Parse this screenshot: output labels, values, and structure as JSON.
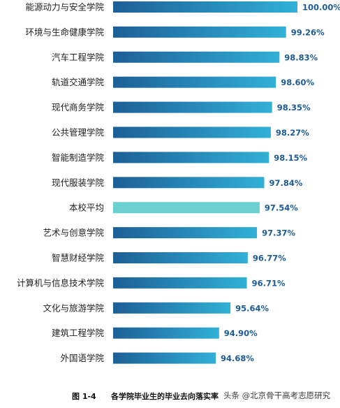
{
  "chart_data": {
    "type": "bar",
    "orientation": "horizontal",
    "categories": [
      "能源动力与安全学院",
      "环境与生命健康学院",
      "汽车工程学院",
      "轨道交通学院",
      "现代商务学院",
      "公共管理学院",
      "智能制造学院",
      "现代服装学院",
      "本校平均",
      "艺术与创意学院",
      "智慧财经学院",
      "计算机与信息技术学院",
      "文化与旅游学院",
      "建筑工程学院",
      "外国语学院"
    ],
    "values": [
      100.0,
      99.26,
      98.83,
      98.6,
      98.35,
      98.27,
      98.15,
      97.84,
      97.54,
      97.37,
      96.77,
      96.71,
      95.64,
      94.9,
      94.68
    ],
    "value_labels": [
      "100.00%",
      "99.26%",
      "98.83%",
      "98.60%",
      "98.35%",
      "98.27%",
      "98.15%",
      "97.84%",
      "97.54%",
      "97.37%",
      "96.77%",
      "96.71%",
      "95.64%",
      "94.90%",
      "94.68%"
    ],
    "highlight_category": "本校平均",
    "colors": {
      "bar_start": "#1d5f97",
      "bar_end": "#31b0d6",
      "highlight": "#6ad0d0",
      "value_text": "#1c5b94"
    },
    "axis": {
      "x_visible": false,
      "grid": false
    }
  },
  "caption": {
    "figure_number": "图 1-4",
    "title": "各学院毕业生的毕业去向落实率",
    "watermark": "头条 @北京骨干高考志愿研究"
  }
}
